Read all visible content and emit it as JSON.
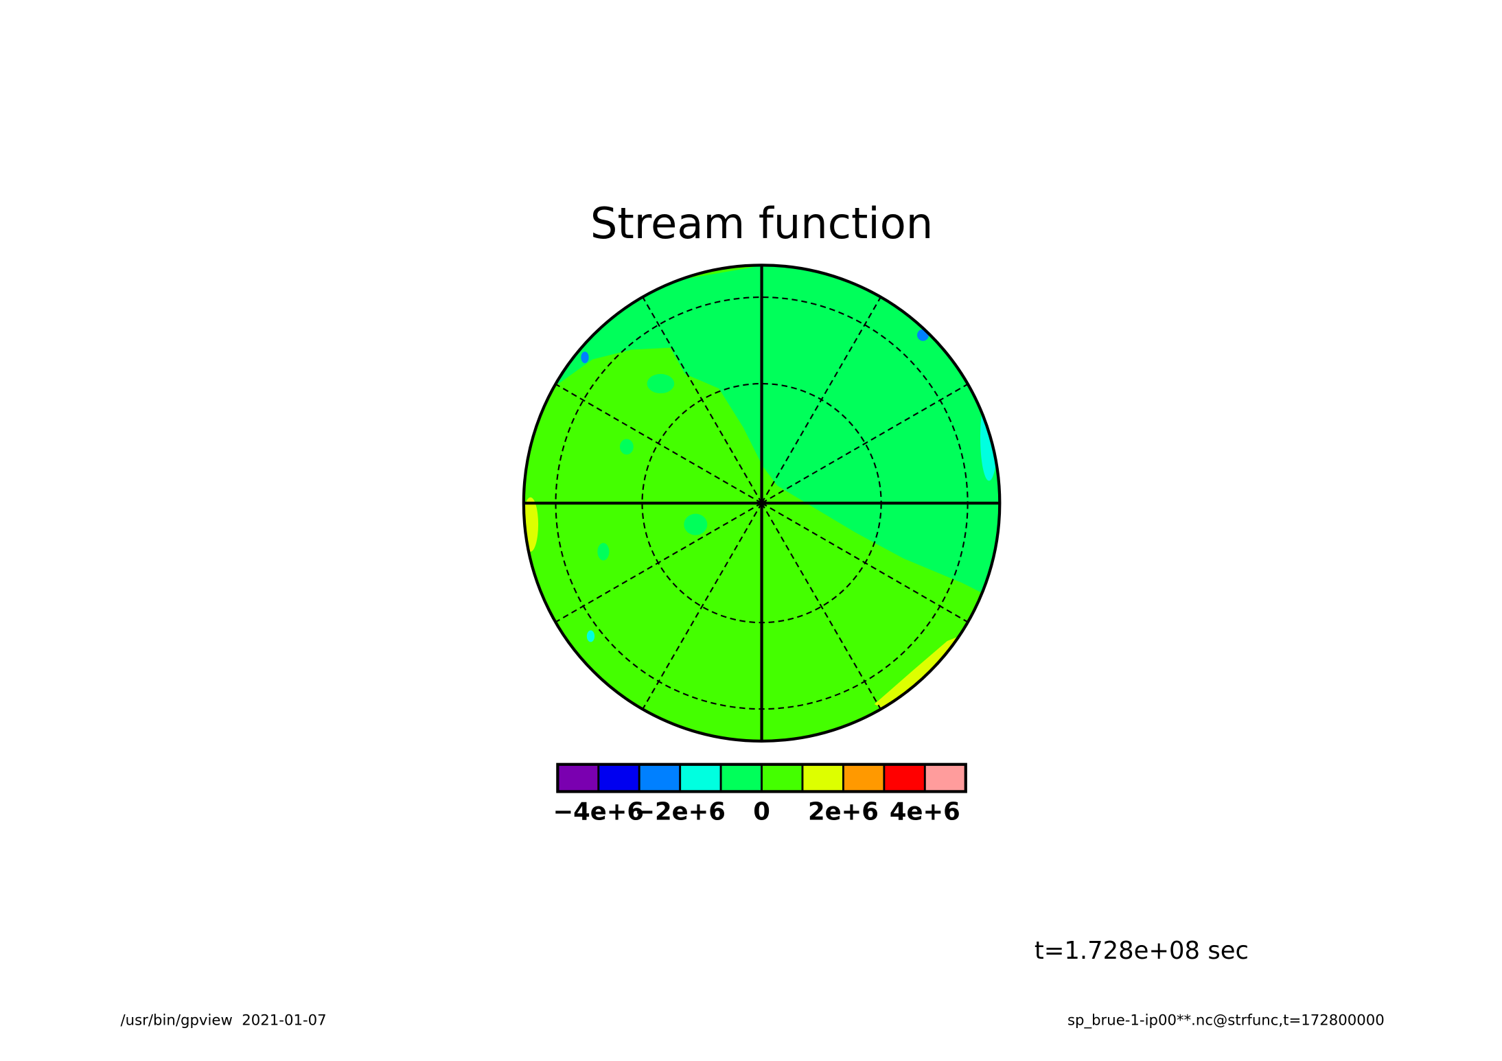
{
  "chart_data": {
    "type": "polar-contour",
    "title": "Stream function",
    "time_label": "t=1.728e+08 sec",
    "footer_left": "/usr/bin/gpview  2021-01-07",
    "footer_right": "sp_brue-1-ip00**.nc@strfunc,t=172800000",
    "clim": [
      -5000000,
      5000000
    ],
    "cticks": [
      {
        "value": -4000000,
        "label": "−4e+6"
      },
      {
        "value": -2000000,
        "label": "−2e+6"
      },
      0,
      {
        "value": 2000000,
        "label": "2e+6"
      },
      {
        "value": 4000000,
        "label": "4e+6"
      }
    ],
    "colors": [
      "#7a00b0",
      "#0000f0",
      "#0080ff",
      "#00ffe0",
      "#00ff5a",
      "#44ff00",
      "#ddff00",
      "#ff9900",
      "#ff0000",
      "#ff9c9c"
    ]
  }
}
